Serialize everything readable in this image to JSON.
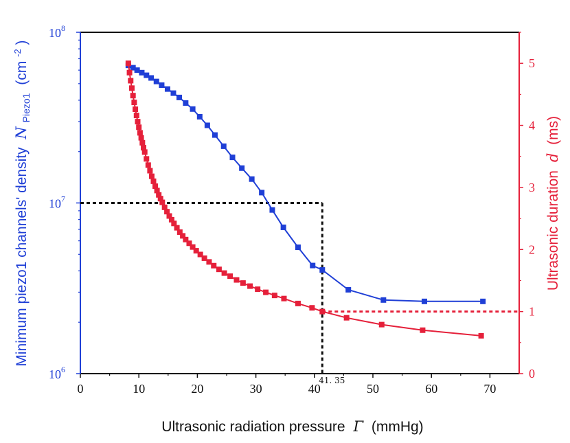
{
  "chart_data": {
    "type": "line",
    "title": "",
    "xlabel": "Ultrasonic radiation pressure",
    "xlabel_symbol": "Γ",
    "xlabel_unit": "(mmHg)",
    "xlim": [
      0,
      75
    ],
    "xticks": [
      "0",
      "10",
      "20",
      "30",
      "40",
      "50",
      "60",
      "70"
    ],
    "ylabel_left": "Minimum piezo1 channels' density",
    "ylabel_left_symbol": "N",
    "ylabel_left_subscript": "Piezo1",
    "ylabel_left_unit": "(cm",
    "ylabel_left_unit_sup": "-2",
    "ylabel_left_unit_end": ")",
    "ylim_left": [
      1000000,
      100000000
    ],
    "yscale_left": "log",
    "yticks_left": [
      {
        "base": "10",
        "exp": "6"
      },
      {
        "base": "10",
        "exp": "7"
      },
      {
        "base": "10",
        "exp": "8"
      }
    ],
    "ylabel_right": "Ultrasonic duration",
    "ylabel_right_symbol": "d",
    "ylabel_right_unit": "(ms)",
    "ylim_right": [
      0,
      5.5
    ],
    "yticks_right": [
      "0",
      "1",
      "2",
      "3",
      "4",
      "5"
    ],
    "annotation": "41. 35",
    "reference_lines": {
      "density_threshold": 10000000,
      "pressure_x": 41.35,
      "duration_threshold": 1
    },
    "series": [
      {
        "name": "Minimum piezo1 channels' density",
        "axis": "left",
        "color": "#1f3fd6",
        "x": [
          8.2,
          9.0,
          9.7,
          10.5,
          11.3,
          12.1,
          13.0,
          13.9,
          14.9,
          15.9,
          16.9,
          18.0,
          19.2,
          20.4,
          21.7,
          23.0,
          24.5,
          26.0,
          27.6,
          29.3,
          31.0,
          32.8,
          34.7,
          37.2,
          39.7,
          41.35,
          45.8,
          51.8,
          58.8,
          68.8
        ],
        "y": [
          64000000,
          62000000,
          60000000,
          58000000,
          56000000,
          54000000,
          51500000,
          49000000,
          46500000,
          44000000,
          41500000,
          38500000,
          35500000,
          32000000,
          28500000,
          25000000,
          21500000,
          18500000,
          16000000,
          13800000,
          11500000,
          9100000,
          7200000,
          5500000,
          4300000,
          4050000,
          3100000,
          2700000,
          2650000,
          2650000
        ]
      },
      {
        "name": "Ultrasonic duration",
        "axis": "right",
        "color": "#e5203a",
        "x": [
          8.2,
          8.4,
          8.6,
          8.8,
          9.0,
          9.2,
          9.4,
          9.6,
          9.8,
          10.0,
          10.2,
          10.4,
          10.6,
          10.8,
          11.0,
          11.3,
          11.6,
          11.9,
          12.2,
          12.5,
          12.8,
          13.1,
          13.4,
          13.7,
          14.0,
          14.4,
          14.8,
          15.2,
          15.6,
          16.0,
          16.5,
          17.0,
          17.5,
          18.0,
          18.6,
          19.2,
          19.8,
          20.5,
          21.2,
          22.0,
          22.8,
          23.7,
          24.6,
          25.6,
          26.7,
          27.8,
          29.0,
          30.3,
          31.7,
          33.2,
          34.8,
          37.2,
          39.6,
          41.35,
          45.5,
          51.5,
          58.5,
          68.5
        ],
        "y": [
          5.0,
          4.85,
          4.72,
          4.6,
          4.48,
          4.37,
          4.26,
          4.16,
          4.06,
          3.97,
          3.88,
          3.8,
          3.72,
          3.64,
          3.57,
          3.46,
          3.36,
          3.27,
          3.18,
          3.1,
          3.02,
          2.95,
          2.88,
          2.82,
          2.76,
          2.68,
          2.61,
          2.54,
          2.48,
          2.42,
          2.35,
          2.28,
          2.22,
          2.16,
          2.1,
          2.04,
          1.98,
          1.92,
          1.86,
          1.8,
          1.74,
          1.68,
          1.62,
          1.57,
          1.51,
          1.46,
          1.41,
          1.36,
          1.31,
          1.26,
          1.21,
          1.13,
          1.06,
          1.0,
          0.9,
          0.79,
          0.7,
          0.61
        ]
      }
    ]
  }
}
